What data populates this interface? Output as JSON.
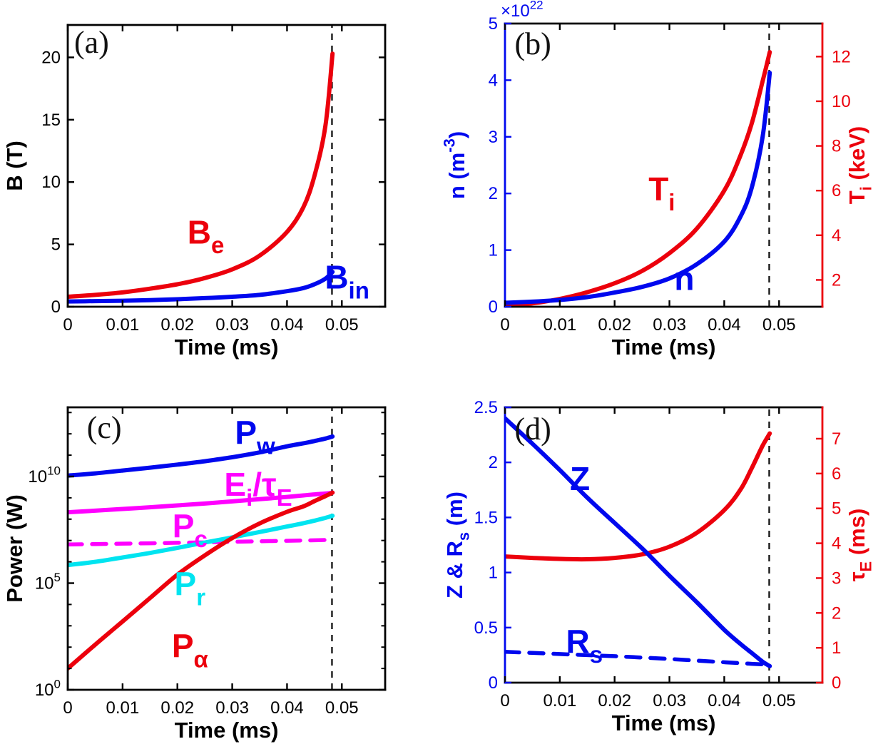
{
  "figure": {
    "background": "#ffffff",
    "colors": {
      "blue": "#0008EE",
      "red": "#EC000C",
      "magenta": "#FF00FF",
      "cyan": "#00E4F0",
      "black": "#000000"
    },
    "dashed_event_time": 0.0482
  },
  "chart_data": {
    "type": "line",
    "layout": "2x2 grid of physics time-trace plots, dashed vertical event line near t=0.048 ms in every panel",
    "panels": [
      {
        "tag": "(a)",
        "tag_fpos": [
          0.075,
          0.063
        ],
        "xlabel": "Time (ms)",
        "xlim": [
          0,
          0.0579
        ],
        "x_ticks": {
          "values": [
            0,
            0.01,
            0.02,
            0.03,
            0.04,
            0.05
          ],
          "labels": [
            "0",
            "0.01",
            "0.02",
            "0.03",
            "0.04",
            "0.05"
          ]
        },
        "left_axis": {
          "label": "B (T)",
          "color": "black",
          "scale": "linear",
          "lim": [
            0,
            22.6
          ],
          "tick_values": [
            0,
            5,
            10,
            15,
            20
          ],
          "tick_labels": [
            "0",
            "5",
            "10",
            "15",
            "20"
          ]
        },
        "right_axis": "mirror",
        "dashed_vline_x": 0.0482,
        "series": [
          {
            "name": "B_e",
            "label": "B_{e}",
            "color": "red",
            "axis": "left",
            "dash": false,
            "label_fpos": [
              0.435,
              0.74
            ],
            "x": [
              0,
              0.005,
              0.01,
              0.015,
              0.02,
              0.025,
              0.03,
              0.035,
              0.04,
              0.043,
              0.045,
              0.047,
              0.0483
            ],
            "y": [
              0.8,
              0.95,
              1.15,
              1.45,
              1.8,
              2.3,
              3.0,
              4.1,
              6.0,
              8.0,
              10.5,
              14.5,
              20.3
            ]
          },
          {
            "name": "B_in",
            "label": "B_{in}",
            "color": "blue",
            "axis": "left",
            "dash": false,
            "label_fpos": [
              0.88,
              0.9
            ],
            "x": [
              0,
              0.005,
              0.01,
              0.015,
              0.02,
              0.025,
              0.03,
              0.035,
              0.04,
              0.043,
              0.045,
              0.047,
              0.0483
            ],
            "y": [
              0.42,
              0.45,
              0.48,
              0.53,
              0.6,
              0.69,
              0.8,
              0.95,
              1.25,
              1.5,
              1.8,
              2.25,
              2.8
            ]
          }
        ]
      },
      {
        "tag": "(b)",
        "tag_fpos": [
          0.088,
          0.073
        ],
        "xlabel": "Time (ms)",
        "xlim": [
          0,
          0.0579
        ],
        "x_ticks": {
          "values": [
            0,
            0.01,
            0.02,
            0.03,
            0.04,
            0.05
          ],
          "labels": [
            "0",
            "0.01",
            "0.02",
            "0.03",
            "0.04",
            "0.05"
          ]
        },
        "left_axis": {
          "label": "n (m^{-3})",
          "color": "blue",
          "scale": "linear",
          "lim": [
            0,
            5
          ],
          "offset_label": "×10^{22}",
          "tick_values": [
            0,
            1,
            2,
            3,
            4,
            5
          ],
          "tick_labels": [
            "0",
            "1",
            "2",
            "3",
            "4",
            "5"
          ]
        },
        "right_axis": {
          "label": "T_{i} (keV)",
          "color": "red",
          "scale": "linear",
          "lim": [
            0.8,
            13.48
          ],
          "tick_values": [
            2,
            4,
            6,
            8,
            10,
            12
          ],
          "tick_labels": [
            "2",
            "4",
            "6",
            "8",
            "10",
            "12"
          ]
        },
        "dashed_vline_x": 0.0482,
        "series": [
          {
            "name": "T_i",
            "label": "T_{i}",
            "color": "red",
            "axis": "right",
            "dash": false,
            "label_fpos": [
              0.494,
              0.59
            ],
            "x": [
              0,
              0.005,
              0.01,
              0.015,
              0.02,
              0.025,
              0.03,
              0.035,
              0.04,
              0.043,
              0.045,
              0.047,
              0.0483
            ],
            "y": [
              0.82,
              0.95,
              1.15,
              1.45,
              1.85,
              2.4,
              3.2,
              4.3,
              6.0,
              7.6,
              9.0,
              10.9,
              12.2
            ]
          },
          {
            "name": "n",
            "label": "n",
            "color": "blue",
            "axis": "left",
            "dash": false,
            "label_fpos": [
              0.565,
              0.905
            ],
            "x": [
              0,
              0.005,
              0.01,
              0.015,
              0.02,
              0.025,
              0.03,
              0.035,
              0.04,
              0.043,
              0.045,
              0.047,
              0.0483
            ],
            "y": [
              0.07,
              0.09,
              0.12,
              0.17,
              0.25,
              0.35,
              0.5,
              0.75,
              1.15,
              1.6,
              2.1,
              3.0,
              4.13
            ]
          }
        ]
      },
      {
        "tag": "(c)",
        "tag_fpos": [
          0.115,
          0.073
        ],
        "xlabel": "Time (ms)",
        "xlim": [
          0,
          0.0579
        ],
        "x_ticks": {
          "values": [
            0,
            0.01,
            0.02,
            0.03,
            0.04,
            0.05
          ],
          "labels": [
            "0",
            "0.01",
            "0.02",
            "0.03",
            "0.04",
            "0.05"
          ]
        },
        "left_axis": {
          "label": "Power (W)",
          "color": "black",
          "scale": "log",
          "lim": [
            1,
            17500000000000
          ],
          "tick_values": [
            1,
            100000,
            10000000000
          ],
          "tick_labels": [
            "10^{0}",
            "10^{5}",
            "10^{10}"
          ]
        },
        "right_axis": "mirror",
        "dashed_vline_x": 0.0482,
        "series": [
          {
            "name": "P_w",
            "label": "P_{w}",
            "color": "blue",
            "axis": "left",
            "dash": false,
            "label_fpos": [
              0.59,
              0.095
            ],
            "x": [
              0,
              0.005,
              0.01,
              0.015,
              0.02,
              0.025,
              0.03,
              0.035,
              0.04,
              0.043,
              0.045,
              0.047,
              0.0483
            ],
            "y": [
              11000000000.0,
              14000000000.0,
              19000000000.0,
              26000000000.0,
              36000000000.0,
              52000000000.0,
              80000000000.0,
              135000000000.0,
              260000000000.0,
              360000000000.0,
              460000000000.0,
              600000000000.0,
              750000000000.0
            ]
          },
          {
            "name": "Ei_over_tauE",
            "label": "E_{i}/τ_{E}",
            "color": "magenta",
            "axis": "left",
            "dash": false,
            "label_fpos": [
              0.6,
              0.278
            ],
            "x": [
              0,
              0.005,
              0.01,
              0.015,
              0.02,
              0.025,
              0.03,
              0.035,
              0.04,
              0.043,
              0.045,
              0.047,
              0.0483
            ],
            "y": [
              210000000.0,
              250000000.0,
              300000000.0,
              360000000.0,
              440000000.0,
              540000000.0,
              680000000.0,
              860000000.0,
              1100000000.0,
              1300000000.0,
              1450000000.0,
              1600000000.0,
              1750000000.0
            ]
          },
          {
            "name": "P_c",
            "label": "P_{c}",
            "color": "magenta",
            "axis": "left",
            "dash": true,
            "label_fpos": [
              0.385,
              0.425
            ],
            "x": [
              0,
              0.005,
              0.01,
              0.015,
              0.02,
              0.025,
              0.03,
              0.035,
              0.04,
              0.043,
              0.045,
              0.047
            ],
            "y": [
              6500000.0,
              6800000.0,
              7100000.0,
              7400000.0,
              7800000.0,
              8200000.0,
              8700000.0,
              9200000.0,
              9700000.0,
              10000000.0,
              10200000.0,
              10500000.0
            ]
          },
          {
            "name": "P_r",
            "label": "P_{r}",
            "color": "cyan",
            "axis": "left",
            "dash": false,
            "label_fpos": [
              0.385,
              0.63
            ],
            "x": [
              0,
              0.005,
              0.01,
              0.015,
              0.02,
              0.025,
              0.03,
              0.035,
              0.04,
              0.043,
              0.045,
              0.047,
              0.0483
            ],
            "y": [
              700000.0,
              1000000.0,
              1600000.0,
              2600000.0,
              4500000.0,
              8000000.0,
              14000000.0,
              25000000.0,
              45000000.0,
              65000000.0,
              85000000.0,
              115000000.0,
              145000000.0
            ]
          },
          {
            "name": "P_alpha",
            "label": "P_{α}",
            "color": "red",
            "axis": "left",
            "dash": false,
            "label_fpos": [
              0.385,
              0.85
            ],
            "x": [
              0,
              0.005,
              0.01,
              0.015,
              0.02,
              0.025,
              0.03,
              0.035,
              0.04,
              0.043,
              0.045,
              0.047,
              0.0483
            ],
            "y": [
              10.0,
              130.0,
              1600.0,
              20000.0,
              250000.0,
              2000000.0,
              13000000.0,
              63000000.0,
              220000000.0,
              400000000.0,
              700000000.0,
              1200000000.0,
              1750000000.0
            ]
          }
        ]
      },
      {
        "tag": "(d)",
        "tag_fpos": [
          0.088,
          0.08
        ],
        "xlabel": "Time (ms)",
        "xlim": [
          0,
          0.0579
        ],
        "x_ticks": {
          "values": [
            0,
            0.01,
            0.02,
            0.03,
            0.04,
            0.05
          ],
          "labels": [
            "0",
            "0.01",
            "0.02",
            "0.03",
            "0.04",
            "0.05"
          ]
        },
        "left_axis": {
          "label": "Z & R_{s} (m)",
          "color": "blue",
          "scale": "linear",
          "lim": [
            0,
            2.5
          ],
          "tick_values": [
            0,
            0.5,
            1,
            1.5,
            2,
            2.5
          ],
          "tick_labels": [
            "0",
            "0.5",
            "1",
            "1.5",
            "2",
            "2.5"
          ]
        },
        "right_axis": {
          "label": "τ_{E} (ms)",
          "color": "red",
          "scale": "linear",
          "lim": [
            0,
            7.9
          ],
          "tick_values": [
            0,
            1,
            2,
            3,
            4,
            5,
            6,
            7
          ],
          "tick_labels": [
            "0",
            "1",
            "2",
            "3",
            "4",
            "5",
            "6",
            "7"
          ]
        },
        "dashed_vline_x": 0.0482,
        "series": [
          {
            "name": "tau_E",
            "label": "",
            "color": "red",
            "axis": "right",
            "dash": false,
            "label_fpos": null,
            "x": [
              0,
              0.005,
              0.01,
              0.015,
              0.02,
              0.025,
              0.03,
              0.035,
              0.04,
              0.043,
              0.045,
              0.047,
              0.0483
            ],
            "y": [
              3.62,
              3.58,
              3.55,
              3.54,
              3.58,
              3.68,
              3.9,
              4.3,
              4.95,
              5.55,
              6.15,
              6.8,
              7.15
            ]
          },
          {
            "name": "Z",
            "label": "Z",
            "color": "blue",
            "axis": "left",
            "dash": false,
            "label_fpos": [
              0.236,
              0.264
            ],
            "x": [
              0,
              0.005,
              0.01,
              0.015,
              0.02,
              0.025,
              0.03,
              0.035,
              0.04,
              0.043,
              0.045,
              0.047,
              0.0483
            ],
            "y": [
              2.4,
              2.17,
              1.93,
              1.68,
              1.45,
              1.22,
              0.97,
              0.73,
              0.48,
              0.35,
              0.27,
              0.19,
              0.15
            ]
          },
          {
            "name": "R_s",
            "label": "R_{s}",
            "color": "blue",
            "axis": "left",
            "dash": true,
            "label_fpos": [
              0.25,
              0.855
            ],
            "x": [
              0,
              0.005,
              0.01,
              0.015,
              0.02,
              0.025,
              0.03,
              0.035,
              0.04,
              0.043,
              0.045,
              0.047,
              0.0483
            ],
            "y": [
              0.28,
              0.27,
              0.26,
              0.25,
              0.24,
              0.228,
              0.215,
              0.2,
              0.185,
              0.177,
              0.171,
              0.166,
              0.162
            ]
          }
        ]
      }
    ]
  }
}
